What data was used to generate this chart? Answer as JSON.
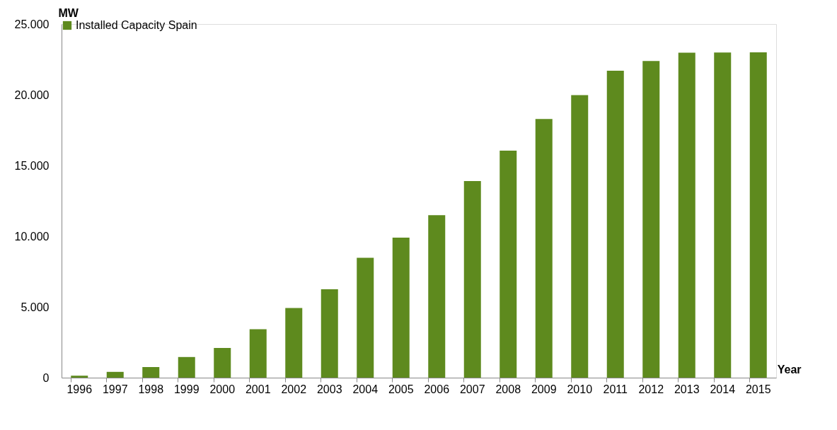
{
  "chart_data": {
    "type": "bar",
    "xlabel": "Year",
    "ylabel": "MW",
    "categories": [
      "1996",
      "1997",
      "1998",
      "1999",
      "2000",
      "2001",
      "2002",
      "2003",
      "2004",
      "2005",
      "2006",
      "2007",
      "2008",
      "2009",
      "2010",
      "2011",
      "2012",
      "2013",
      "2014",
      "2015"
    ],
    "series": [
      {
        "name": "Installed Capacity Spain",
        "color": "#5e8a1e",
        "values": [
          140,
          410,
          750,
          1460,
          2100,
          3420,
          4930,
          6250,
          8480,
          9900,
          11490,
          13900,
          16050,
          18290,
          19970,
          21700,
          22390,
          22980,
          22990,
          23000
        ]
      }
    ],
    "ylim": [
      0,
      25000
    ],
    "yticks": [
      {
        "value": 0,
        "label": "0"
      },
      {
        "value": 5000,
        "label": "5.000"
      },
      {
        "value": 10000,
        "label": "10.000"
      },
      {
        "value": 15000,
        "label": "15.000"
      },
      {
        "value": 20000,
        "label": "20.000"
      },
      {
        "value": 25000,
        "label": "25.000"
      }
    ],
    "grid": false,
    "legend": "top"
  }
}
